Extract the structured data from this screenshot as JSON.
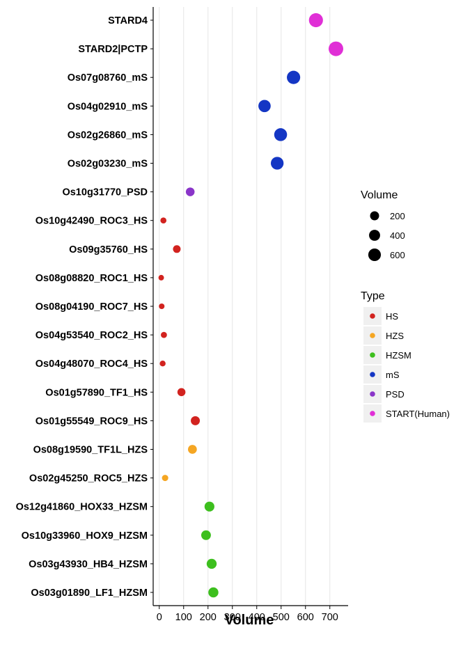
{
  "chart_data": {
    "type": "scatter",
    "title": "",
    "xlabel": "Volume",
    "ylabel": "",
    "xlim": [
      -25,
      775
    ],
    "xticks": [
      0,
      100,
      200,
      300,
      400,
      500,
      600,
      700
    ],
    "grid": "vertical major gridlines",
    "categories": [
      "STARD4",
      "STARD2|PCTP",
      "Os07g08760_mS",
      "Os04g02910_mS",
      "Os02g26860_mS",
      "Os02g03230_mS",
      "Os10g31770_PSD",
      "Os10g42490_ROC3_HS",
      "Os09g35760_HS",
      "Os08g08820_ROC1_HS",
      "Os08g04190_ROC7_HS",
      "Os04g53540_ROC2_HS",
      "Os04g48070_ROC4_HS",
      "Os01g57890_TF1_HS",
      "Os01g55549_ROC9_HS",
      "Os08g19590_TF1L_HZS",
      "Os02g45250_ROC5_HZS",
      "Os12g41860_HOX33_HZSM",
      "Os10g33960_HOX9_HZSM",
      "Os03g43930_HB4_HZSM",
      "Os03g01890_LF1_HZSM"
    ],
    "points": [
      {
        "label": "STARD4",
        "volume": 643,
        "type": "START(Human)"
      },
      {
        "label": "STARD2|PCTP",
        "volume": 725,
        "type": "START(Human)"
      },
      {
        "label": "Os07g08760_mS",
        "volume": 551,
        "type": "mS"
      },
      {
        "label": "Os04g02910_mS",
        "volume": 432,
        "type": "mS"
      },
      {
        "label": "Os02g26860_mS",
        "volume": 498,
        "type": "mS"
      },
      {
        "label": "Os02g03230_mS",
        "volume": 484,
        "type": "mS"
      },
      {
        "label": "Os10g31770_PSD",
        "volume": 127,
        "type": "PSD"
      },
      {
        "label": "Os10g42490_ROC3_HS",
        "volume": 17,
        "type": "HS"
      },
      {
        "label": "Os09g35760_HS",
        "volume": 72,
        "type": "HS"
      },
      {
        "label": "Os08g08820_ROC1_HS",
        "volume": 8,
        "type": "HS"
      },
      {
        "label": "Os08g04190_ROC7_HS",
        "volume": 10,
        "type": "HS"
      },
      {
        "label": "Os04g53540_ROC2_HS",
        "volume": 19,
        "type": "HS"
      },
      {
        "label": "Os04g48070_ROC4_HS",
        "volume": 14,
        "type": "HS"
      },
      {
        "label": "Os01g57890_TF1_HS",
        "volume": 91,
        "type": "HS"
      },
      {
        "label": "Os01g55549_ROC9_HS",
        "volume": 148,
        "type": "HS"
      },
      {
        "label": "Os08g19590_TF1L_HZS",
        "volume": 136,
        "type": "HZS"
      },
      {
        "label": "Os02g45250_ROC5_HZS",
        "volume": 24,
        "type": "HZS"
      },
      {
        "label": "Os12g41860_HOX33_HZSM",
        "volume": 206,
        "type": "HZSM"
      },
      {
        "label": "Os10g33960_HOX9_HZSM",
        "volume": 192,
        "type": "HZSM"
      },
      {
        "label": "Os03g43930_HB4_HZSM",
        "volume": 215,
        "type": "HZSM"
      },
      {
        "label": "Os03g01890_LF1_HZSM",
        "volume": 222,
        "type": "HZSM"
      }
    ],
    "legend": {
      "placement": "right",
      "size": {
        "title": "Volume",
        "values": [
          200,
          400,
          600
        ]
      },
      "color": {
        "title": "Type",
        "entries": [
          {
            "name": "HS",
            "color": "#D2231F"
          },
          {
            "name": "HZS",
            "color": "#F5A623"
          },
          {
            "name": "HZSM",
            "color": "#3DBF1E"
          },
          {
            "name": "mS",
            "color": "#1436C4"
          },
          {
            "name": "PSD",
            "color": "#8A35C9"
          },
          {
            "name": "START(Human)",
            "color": "#E02FD6"
          }
        ]
      }
    }
  }
}
